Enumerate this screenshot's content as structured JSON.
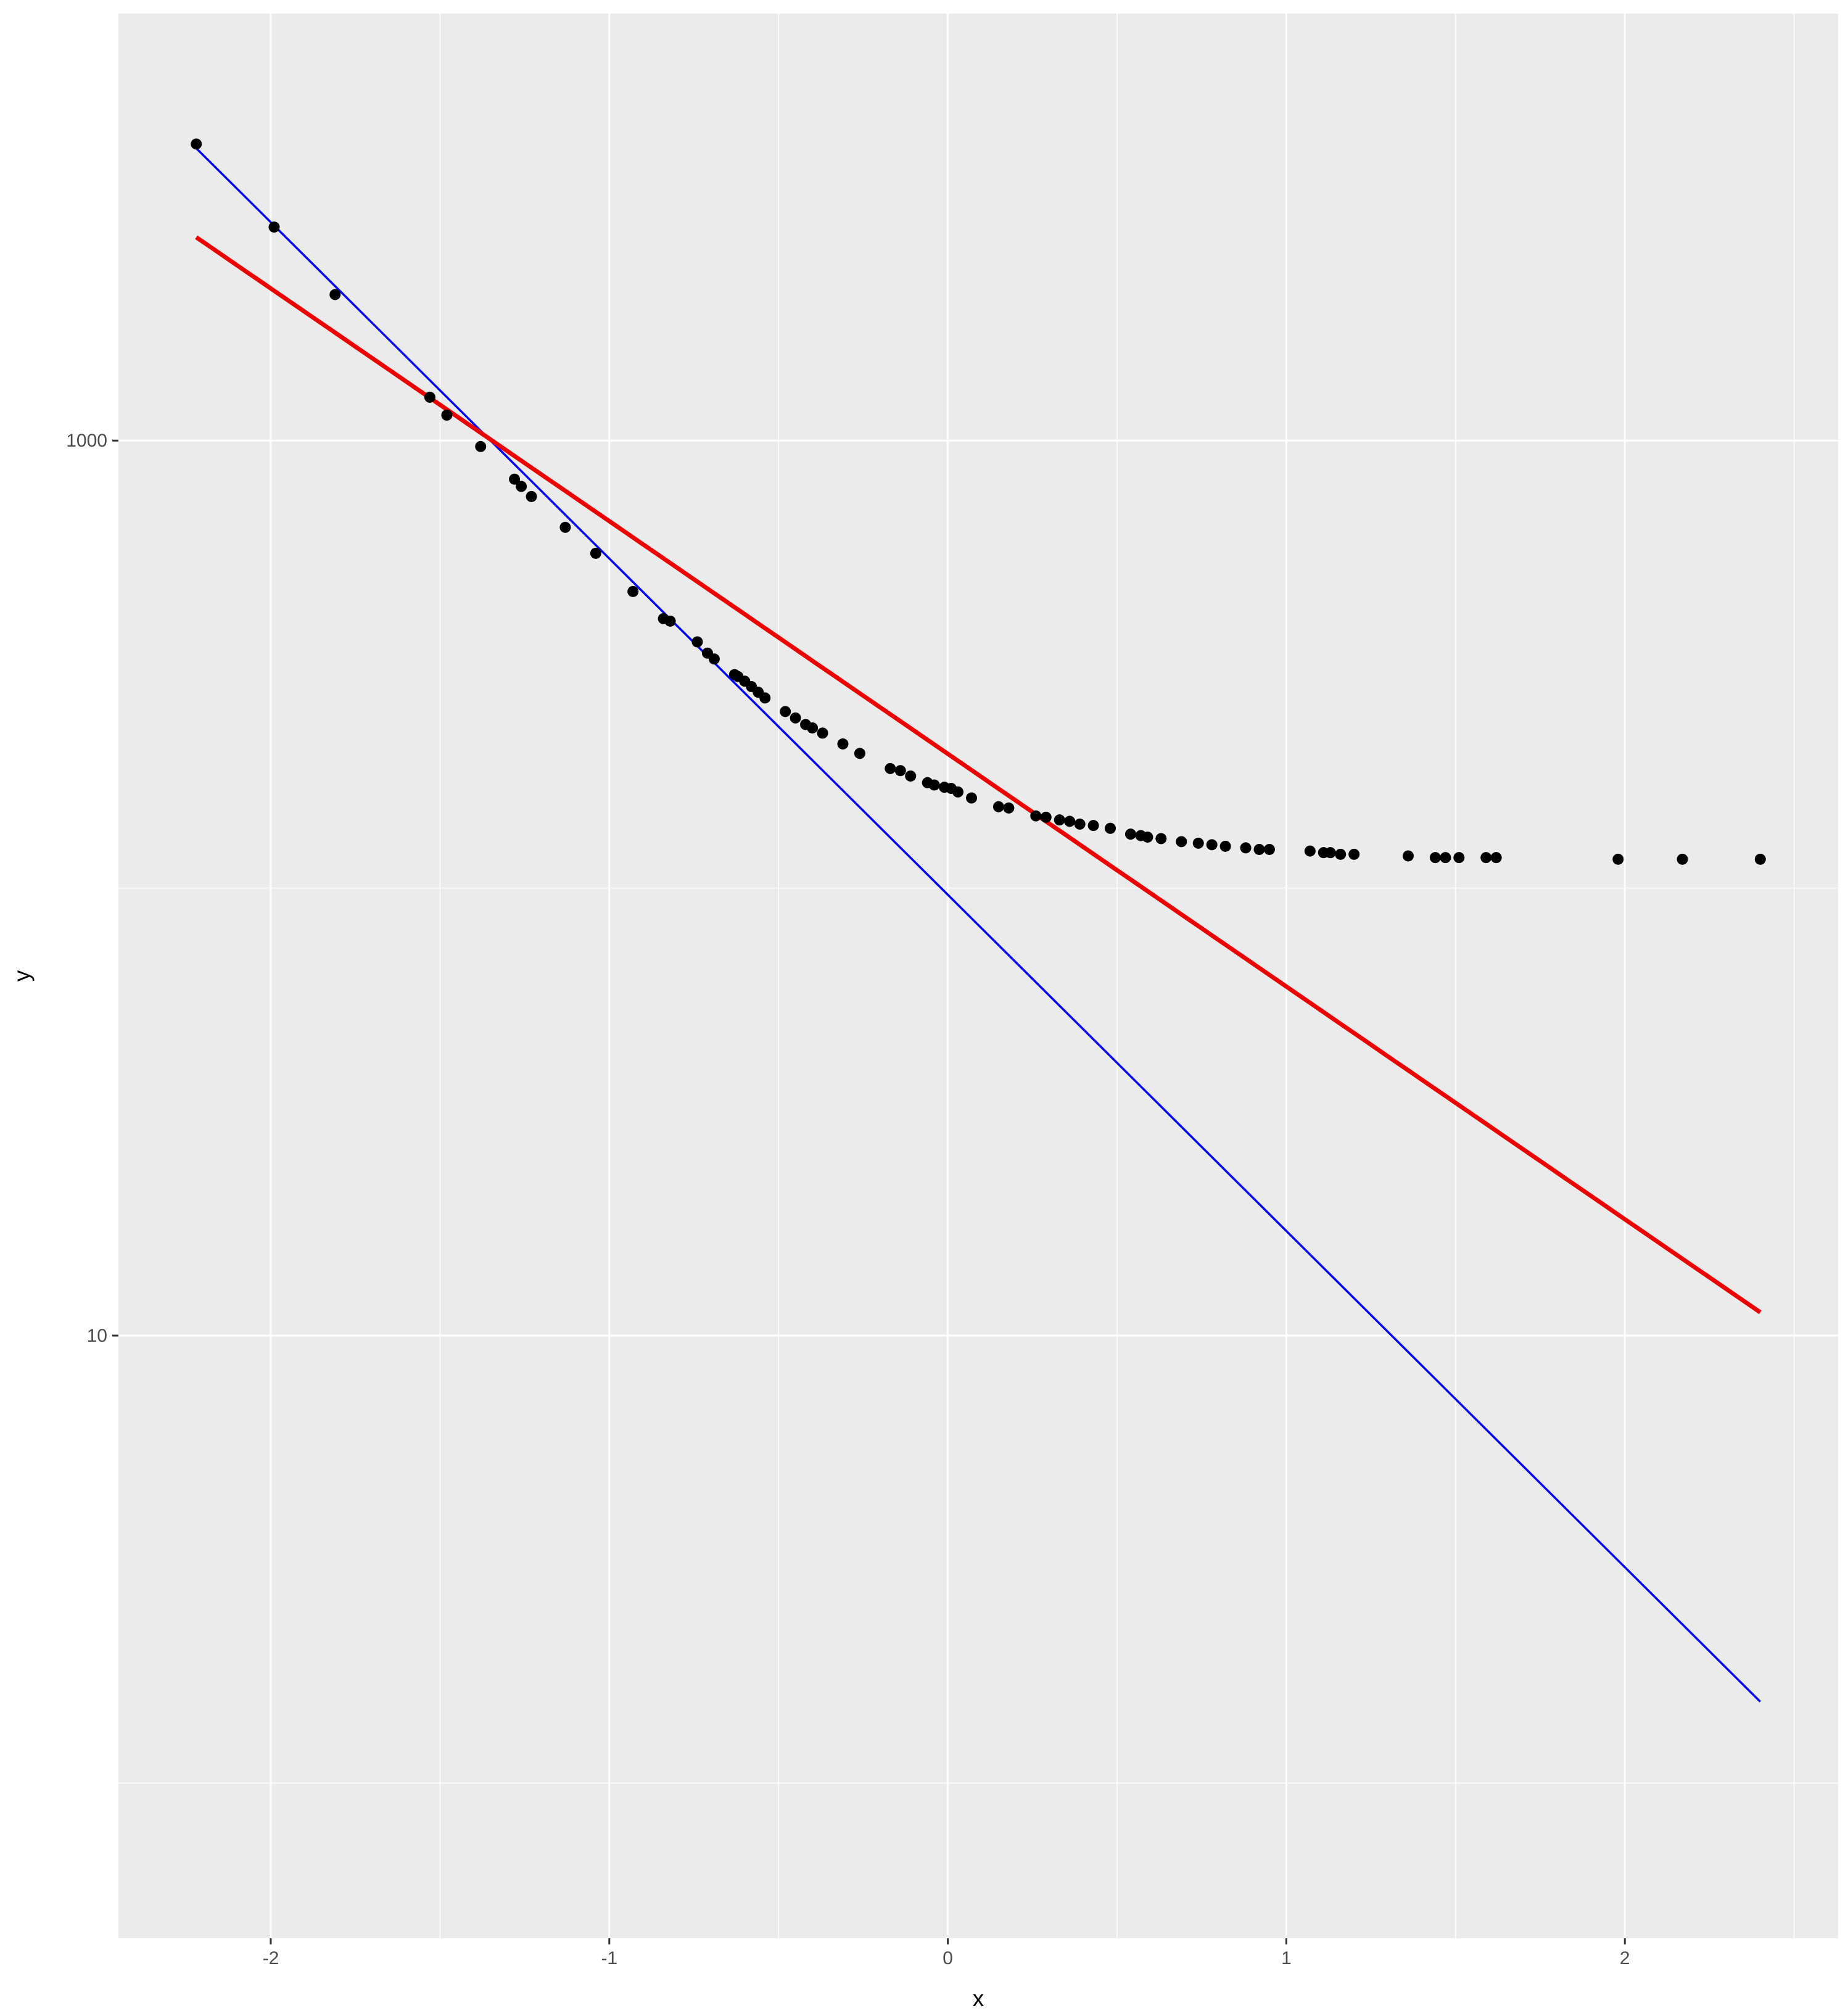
{
  "chart_data": {
    "type": "scatter",
    "xlabel": "x",
    "ylabel": "y",
    "xlim": [
      -2.45,
      2.63
    ],
    "ylim": [
      0.45,
      9000
    ],
    "y_scale": "log10",
    "grid": true,
    "x_ticks": [
      -2,
      -1,
      0,
      1,
      2
    ],
    "x_tick_labels": [
      "-2",
      "-1",
      "0",
      "1",
      "2"
    ],
    "y_ticks": [
      10,
      1000
    ],
    "y_tick_labels": [
      "10",
      "1000"
    ],
    "colors": {
      "panel_background": "#ebebeb",
      "grid": "#ffffff",
      "points": "#000000",
      "fit_line": "#0000ff",
      "curve": "#ee0000"
    },
    "points": [
      [
        -2.22,
        4600
      ],
      [
        -1.99,
        3000
      ],
      [
        -1.81,
        2120
      ],
      [
        -1.53,
        1250
      ],
      [
        -1.48,
        1140
      ],
      [
        -1.38,
        970
      ],
      [
        -1.28,
        820
      ],
      [
        -1.26,
        790
      ],
      [
        -1.23,
        750
      ],
      [
        -1.13,
        640
      ],
      [
        -1.04,
        560
      ],
      [
        -0.93,
        460
      ],
      [
        -0.84,
        400
      ],
      [
        -0.82,
        395
      ],
      [
        -0.74,
        355
      ],
      [
        -0.71,
        335
      ],
      [
        -0.69,
        325
      ],
      [
        -0.63,
        300
      ],
      [
        -0.62,
        297
      ],
      [
        -0.6,
        290
      ],
      [
        -0.58,
        282
      ],
      [
        -0.56,
        274
      ],
      [
        -0.54,
        266
      ],
      [
        -0.48,
        248
      ],
      [
        -0.45,
        240
      ],
      [
        -0.42,
        232
      ],
      [
        -0.4,
        228
      ],
      [
        -0.37,
        222
      ],
      [
        -0.31,
        210
      ],
      [
        -0.26,
        200
      ],
      [
        -0.17,
        185
      ],
      [
        -0.14,
        183
      ],
      [
        -0.11,
        178
      ],
      [
        -0.06,
        172
      ],
      [
        -0.04,
        170
      ],
      [
        -0.01,
        168
      ],
      [
        0.01,
        167
      ],
      [
        0.03,
        164
      ],
      [
        0.07,
        159
      ],
      [
        0.15,
        152
      ],
      [
        0.18,
        151
      ],
      [
        0.26,
        145
      ],
      [
        0.29,
        144
      ],
      [
        0.33,
        142
      ],
      [
        0.36,
        141
      ],
      [
        0.39,
        139
      ],
      [
        0.43,
        138
      ],
      [
        0.48,
        136
      ],
      [
        0.54,
        132
      ],
      [
        0.57,
        131
      ],
      [
        0.59,
        130
      ],
      [
        0.63,
        129
      ],
      [
        0.69,
        127
      ],
      [
        0.74,
        126
      ],
      [
        0.78,
        125
      ],
      [
        0.82,
        124
      ],
      [
        0.88,
        123
      ],
      [
        0.92,
        122
      ],
      [
        0.95,
        122
      ],
      [
        1.07,
        121
      ],
      [
        1.11,
        120
      ],
      [
        1.13,
        120
      ],
      [
        1.16,
        119
      ],
      [
        1.2,
        119
      ],
      [
        1.36,
        118
      ],
      [
        1.44,
        117
      ],
      [
        1.47,
        117
      ],
      [
        1.51,
        117
      ],
      [
        1.59,
        117
      ],
      [
        1.62,
        117
      ],
      [
        1.98,
        116
      ],
      [
        2.17,
        116
      ],
      [
        2.4,
        116
      ]
    ],
    "fit_line": {
      "x": [
        -2.22,
        2.4
      ],
      "y": [
        4500,
        1.52
      ]
    },
    "curve": {
      "x_range": [
        -2.22,
        2.4
      ],
      "log10_a": 2.3,
      "log10_b": -0.52
    }
  }
}
